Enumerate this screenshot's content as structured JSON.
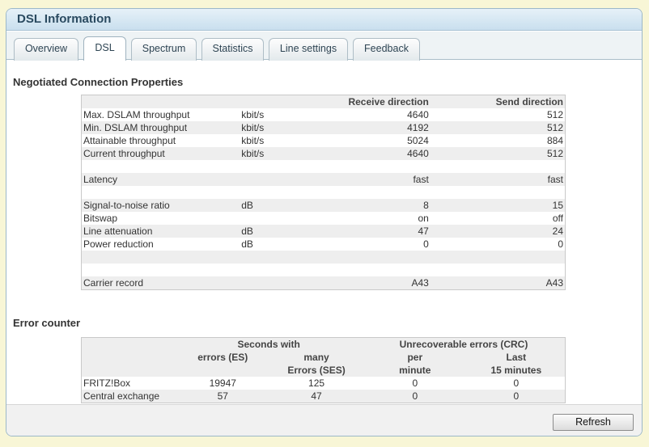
{
  "header": {
    "title": "DSL Information"
  },
  "tabs": [
    "Overview",
    "DSL",
    "Spectrum",
    "Statistics",
    "Line settings",
    "Feedback"
  ],
  "active_tab": "DSL",
  "negotiated": {
    "heading": "Negotiated Connection Properties",
    "col_receive": "Receive direction",
    "col_send": "Send direction",
    "rows": [
      {
        "label": "Max. DSLAM throughput",
        "unit": "kbit/s",
        "rx": "4640",
        "tx": "512"
      },
      {
        "label": "Min. DSLAM throughput",
        "unit": "kbit/s",
        "rx": "4192",
        "tx": "512"
      },
      {
        "label": "Attainable throughput",
        "unit": "kbit/s",
        "rx": "5024",
        "tx": "884"
      },
      {
        "label": "Current throughput",
        "unit": "kbit/s",
        "rx": "4640",
        "tx": "512"
      },
      {
        "label": "",
        "unit": "",
        "rx": "",
        "tx": ""
      },
      {
        "label": "Latency",
        "unit": "",
        "rx": "fast",
        "tx": "fast"
      },
      {
        "label": "",
        "unit": "",
        "rx": "",
        "tx": ""
      },
      {
        "label": "Signal-to-noise ratio",
        "unit": "dB",
        "rx": "8",
        "tx": "15"
      },
      {
        "label": "Bitswap",
        "unit": "",
        "rx": "on",
        "tx": "off"
      },
      {
        "label": "Line attenuation",
        "unit": "dB",
        "rx": "47",
        "tx": "24"
      },
      {
        "label": "Power reduction",
        "unit": "dB",
        "rx": "0",
        "tx": "0"
      },
      {
        "label": "",
        "unit": "",
        "rx": "",
        "tx": ""
      },
      {
        "label": "",
        "unit": "",
        "rx": "",
        "tx": ""
      },
      {
        "label": "Carrier record",
        "unit": "",
        "rx": "A43",
        "tx": "A43"
      }
    ]
  },
  "errors": {
    "heading": "Error counter",
    "group_seconds": "Seconds with",
    "group_crc": "Unrecoverable errors (CRC)",
    "sub_es": "errors (ES)",
    "sub_ses_line1": "many",
    "sub_ses_line2": "Errors (SES)",
    "sub_per_line1": "per",
    "sub_per_line2": "minute",
    "sub_last_line1": "Last",
    "sub_last_line2": "15 minutes",
    "rows": [
      {
        "label": "FRITZ!Box",
        "es": "19947",
        "ses": "125",
        "per_min": "0",
        "last15": "0"
      },
      {
        "label": "Central exchange",
        "es": "57",
        "ses": "47",
        "per_min": "0",
        "last15": "0"
      }
    ]
  },
  "footer": {
    "refresh_label": "Refresh"
  }
}
